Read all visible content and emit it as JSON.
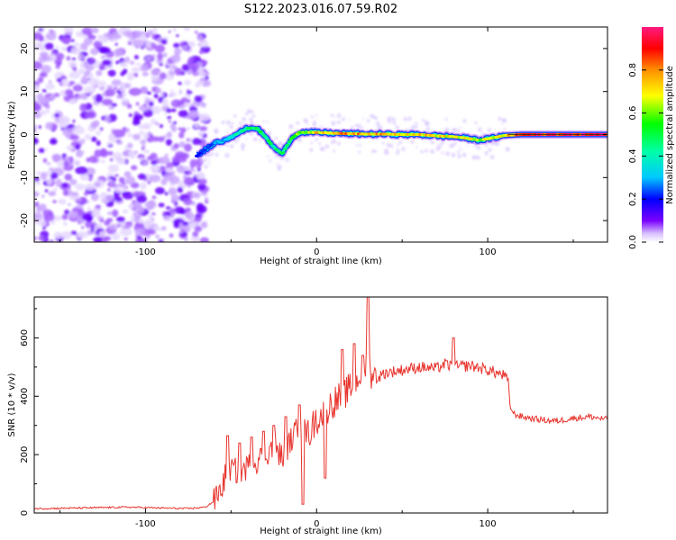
{
  "title": "S122.2023.016.07.59.R02",
  "chart_data": [
    {
      "type": "heatmap",
      "xlabel": "Height of straight line (km)",
      "ylabel": "Frequency (Hz)",
      "xlim": [
        -165,
        170
      ],
      "ylim": [
        -25,
        25
      ],
      "xticks": [
        -100,
        0,
        100
      ],
      "yticks": [
        -20,
        -10,
        0,
        10,
        20
      ],
      "xtick_labels": [
        "-100",
        "0",
        "100"
      ],
      "ytick_labels": [
        "-20",
        "-10",
        "0",
        "10",
        "20"
      ],
      "colorbar": {
        "label": "Normalized spectral amplitude",
        "range": [
          0,
          1
        ],
        "ticks": [
          0.0,
          0.2,
          0.4,
          0.6,
          0.8
        ],
        "tick_labels": [
          "0.0",
          "0.2",
          "0.4",
          "0.6",
          "0.8"
        ],
        "colormap": [
          "#ffffff",
          "#c9a6ff",
          "#7a00ff",
          "#0000ff",
          "#00ffff",
          "#00ff00",
          "#ffff00",
          "#ff8000",
          "#ff0000",
          "#ff0080"
        ]
      },
      "noise_region_x": [
        -165,
        -68
      ],
      "ridge_frequency_hz": {
        "x": [
          -70,
          -65,
          -60,
          -55,
          -50,
          -45,
          -40,
          -35,
          -30,
          -25,
          -20,
          -15,
          -10,
          -5,
          0,
          10,
          20,
          30,
          40,
          50,
          60,
          70,
          80,
          85,
          90,
          95,
          100,
          105,
          110,
          120,
          140,
          160,
          170
        ],
        "y": [
          -5,
          -3.5,
          -2,
          -1.5,
          -0.5,
          0.5,
          1.5,
          1.5,
          -0.5,
          -3,
          -4.5,
          -1,
          0.5,
          0.5,
          0.5,
          0.3,
          0.2,
          0.1,
          0.1,
          0,
          0,
          -0.3,
          -0.5,
          -0.7,
          -1,
          -1.3,
          -1,
          -0.6,
          -0.2,
          0,
          0,
          0,
          0
        ]
      },
      "ridge_amplitude": {
        "x": [
          -70,
          -55,
          -40,
          -25,
          -10,
          0,
          20,
          40,
          60,
          80,
          100,
          110,
          120,
          140,
          170
        ],
        "y": [
          0.2,
          0.3,
          0.5,
          0.45,
          0.6,
          0.75,
          0.8,
          0.75,
          0.75,
          0.7,
          0.65,
          0.7,
          0.9,
          0.95,
          0.95
        ]
      }
    },
    {
      "type": "line",
      "xlabel": "Height of straight line (km)",
      "ylabel": "SNR (10 * v/v)",
      "xlim": [
        -165,
        170
      ],
      "ylim": [
        0,
        740
      ],
      "xticks": [
        -100,
        0,
        100
      ],
      "yticks": [
        0,
        200,
        400,
        600
      ],
      "xtick_labels": [
        "-100",
        "0",
        "100"
      ],
      "ytick_labels": [
        "0",
        "200",
        "400",
        "600"
      ],
      "series": [
        {
          "color": "#e8352f",
          "x": [
            -165,
            -150,
            -130,
            -110,
            -90,
            -75,
            -65,
            -60,
            -55,
            -52,
            -50,
            -45,
            -40,
            -35,
            -30,
            -25,
            -20,
            -15,
            -10,
            -5,
            0,
            5,
            10,
            15,
            20,
            25,
            28,
            30,
            32,
            35,
            40,
            50,
            60,
            70,
            75,
            80,
            90,
            100,
            105,
            110,
            112,
            113,
            115,
            120,
            130,
            140,
            150,
            160,
            170
          ],
          "y": [
            15,
            16,
            18,
            20,
            17,
            15,
            20,
            40,
            90,
            160,
            150,
            140,
            160,
            180,
            200,
            230,
            190,
            250,
            300,
            270,
            320,
            350,
            380,
            400,
            430,
            470,
            500,
            520,
            480,
            460,
            480,
            490,
            500,
            495,
            510,
            500,
            505,
            490,
            480,
            470,
            450,
            370,
            340,
            330,
            320,
            315,
            325,
            330,
            320
          ]
        }
      ],
      "spikes": [
        {
          "x": -52,
          "y": 265
        },
        {
          "x": -45,
          "y": 240
        },
        {
          "x": -38,
          "y": 260
        },
        {
          "x": -31,
          "y": 280
        },
        {
          "x": -25,
          "y": 300
        },
        {
          "x": -18,
          "y": 330
        },
        {
          "x": -10,
          "y": 370
        },
        {
          "x": -8,
          "y": 30
        },
        {
          "x": 15,
          "y": 560
        },
        {
          "x": 27,
          "y": 540
        },
        {
          "x": 30,
          "y": 740
        },
        {
          "x": 80,
          "y": 600
        },
        {
          "x": 5,
          "y": 120
        },
        {
          "x": 22,
          "y": 580
        }
      ]
    }
  ]
}
